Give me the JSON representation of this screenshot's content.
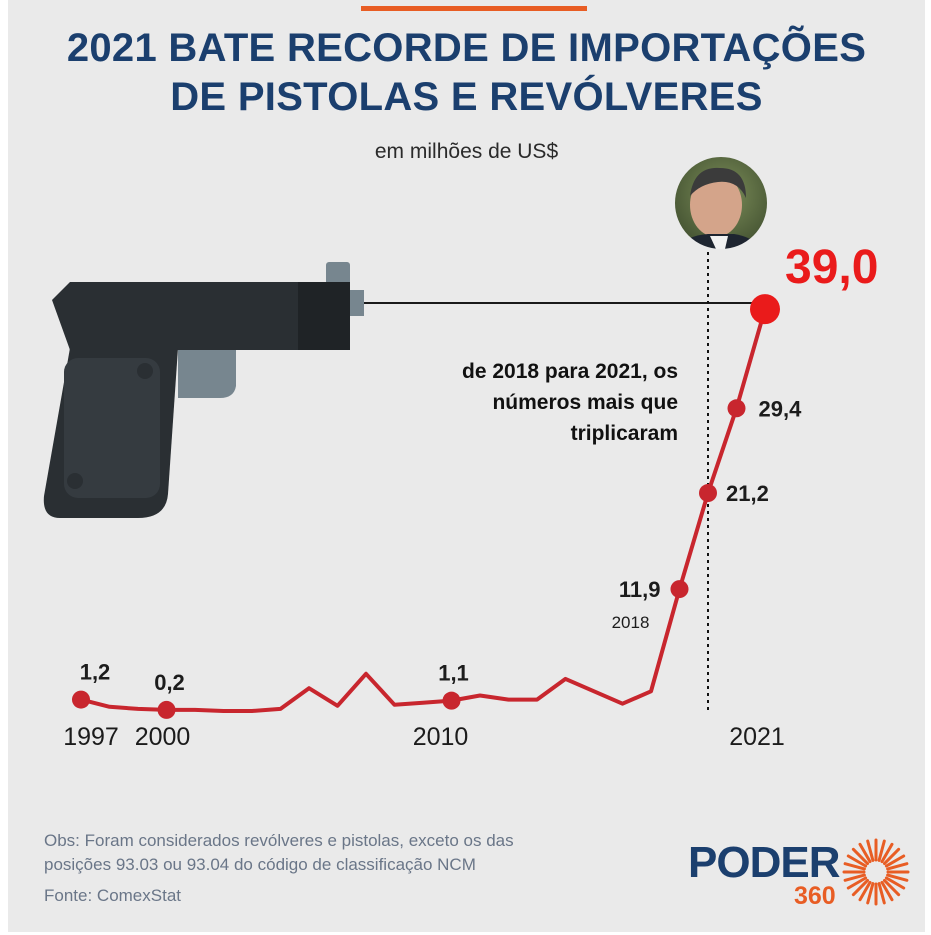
{
  "header": {
    "title_line1": "2021 BATE RECORDE DE IMPORTAÇÕES",
    "title_line2": "DE PISTOLAS E REVÓLVERES",
    "subtitle": "em milhões de US$"
  },
  "annotation": {
    "lines": [
      "de 2018 para 2021, os",
      "números mais que",
      "triplicaram"
    ]
  },
  "notes": {
    "obs_line1": "Obs: Foram considerados revólveres e pistolas, exceto os das",
    "obs_line2": "posições 93.03 ou 93.04 do código de classificação NCM",
    "source": "Fonte: ComexStat"
  },
  "logo": {
    "word": "PODER",
    "number": "360"
  },
  "colors": {
    "title": "#1b3f6e",
    "line": "#c8262e",
    "record": "#ea1b1b",
    "accent": "#e85d24",
    "background": "#eaeaea",
    "notes": "#6a7688"
  },
  "icons": {
    "gun": "pistol-illustration",
    "portrait": "person-portrait"
  },
  "chart_data": {
    "type": "line",
    "title": "2021 BATE RECORDE DE IMPORTAÇÕES DE PISTOLAS E REVÓLVERES",
    "ylabel": "em milhões de US$",
    "xlabel": "",
    "x": [
      1997,
      1998,
      1999,
      2000,
      2001,
      2002,
      2003,
      2004,
      2005,
      2006,
      2007,
      2008,
      2009,
      2010,
      2011,
      2012,
      2013,
      2014,
      2015,
      2016,
      2017,
      2018,
      2019,
      2020,
      2021
    ],
    "values": [
      1.2,
      0.5,
      0.3,
      0.2,
      0.2,
      0.1,
      0.1,
      0.3,
      2.3,
      0.6,
      3.7,
      0.7,
      0.9,
      1.1,
      1.6,
      1.2,
      1.2,
      3.2,
      2.0,
      0.8,
      2.0,
      11.9,
      21.2,
      29.4,
      39.0
    ],
    "ylim": [
      0,
      40
    ],
    "x_tick_labels": [
      {
        "year": 1997,
        "text": "1997"
      },
      {
        "year": 2000,
        "text": "2000"
      },
      {
        "year": 2010,
        "text": "2010"
      },
      {
        "year": 2018,
        "text": "2018"
      },
      {
        "year": 2021,
        "text": "2021"
      }
    ],
    "data_labels": [
      {
        "year": 1997,
        "text": "1,2"
      },
      {
        "year": 2000,
        "text": "0,2"
      },
      {
        "year": 2010,
        "text": "1,1"
      },
      {
        "year": 2018,
        "text": "11,9"
      },
      {
        "year": 2019,
        "text": "21,2"
      },
      {
        "year": 2020,
        "text": "29,4"
      },
      {
        "year": 2021,
        "text": "39,0"
      }
    ],
    "highlighted_years": [
      1997,
      2000,
      2010,
      2018,
      2019,
      2020,
      2021
    ],
    "record_year": 2021,
    "marker_line_year": 2019,
    "grid": false
  }
}
